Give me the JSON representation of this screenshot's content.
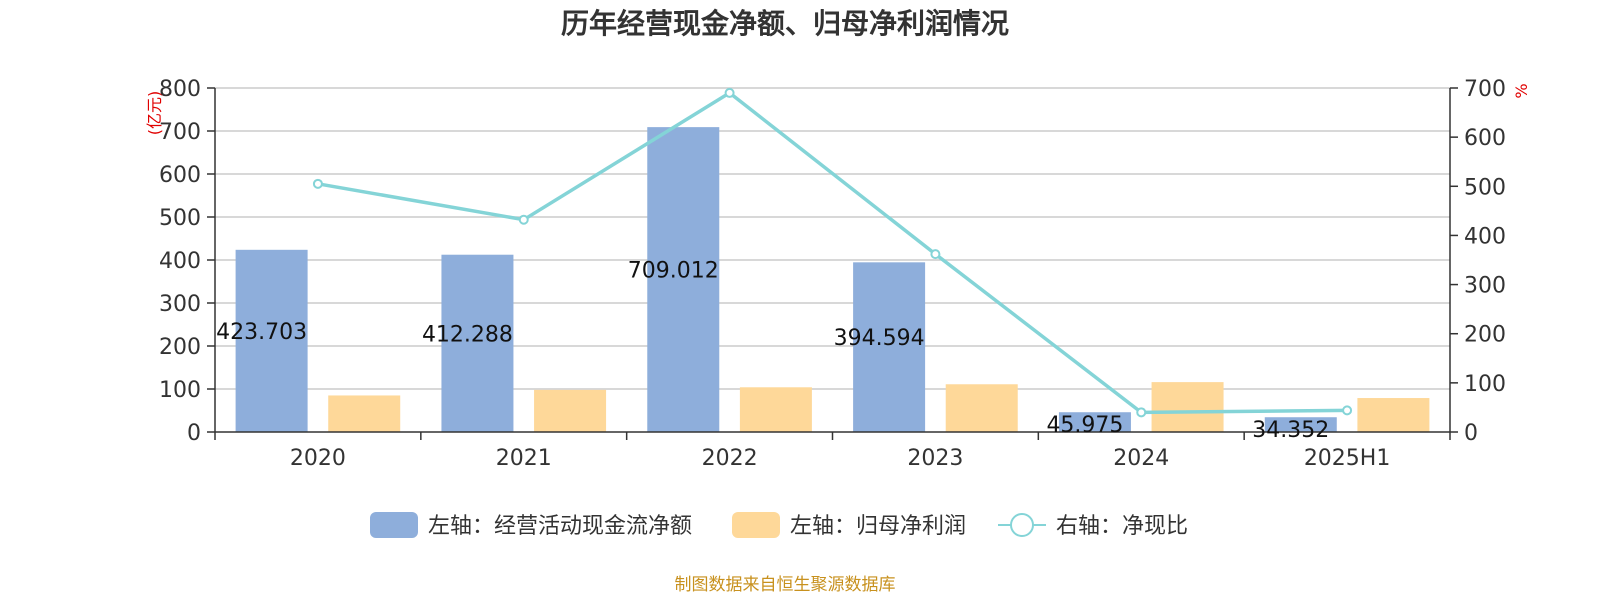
{
  "chart_data": {
    "type": "bar",
    "title": "历年经营现金净额、归母净利润情况",
    "categories": [
      "2020",
      "2021",
      "2022",
      "2023",
      "2024",
      "2025H1"
    ],
    "left_axis": {
      "unit": "(亿元)",
      "ylim": [
        0,
        800
      ],
      "ticks": [
        "0",
        "100",
        "200",
        "300",
        "400",
        "500",
        "600",
        "700",
        "800"
      ]
    },
    "right_axis": {
      "unit": "%",
      "ylim": [
        0,
        700
      ],
      "ticks": [
        "0",
        "100",
        "200",
        "300",
        "400",
        "500",
        "600",
        "700"
      ]
    },
    "series": [
      {
        "name": "左轴：经营活动现金流净额",
        "type": "bar",
        "axis": "left",
        "color": "#8eaedb",
        "values": [
          423.703,
          412.288,
          709.012,
          394.594,
          45.975,
          34.352
        ],
        "labels": [
          "423.703",
          "412.288",
          "709.012",
          "394.594",
          "45.975",
          "34.352"
        ]
      },
      {
        "name": "左轴：归母净利润",
        "type": "bar",
        "axis": "left",
        "color": "#fed899",
        "values": [
          85,
          98,
          104,
          111,
          116,
          79
        ]
      },
      {
        "name": "右轴：净现比",
        "type": "line",
        "axis": "right",
        "color": "#84d4d7",
        "values": [
          505,
          432,
          690,
          362,
          40,
          44
        ]
      }
    ],
    "grid": true,
    "legend_position": "bottom"
  },
  "footer": "制图数据来自恒生聚源数据库"
}
